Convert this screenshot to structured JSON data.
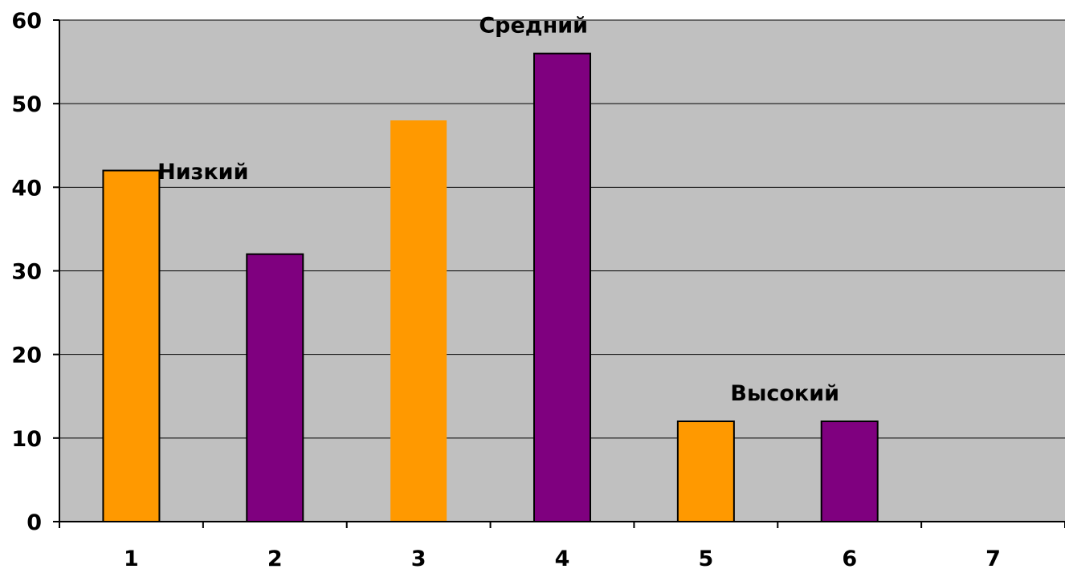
{
  "chart_data": {
    "type": "bar",
    "categories": [
      "1",
      "2",
      "3",
      "4",
      "5",
      "6",
      "7"
    ],
    "values": [
      42,
      32,
      48,
      56,
      12,
      12,
      null
    ],
    "bar_colors": [
      "#FF9900",
      "#7F007F",
      "#FF9900",
      "#7F007F",
      "#FF9900",
      "#7F007F",
      null
    ],
    "yticks": [
      "0",
      "10",
      "20",
      "30",
      "40",
      "50",
      "60"
    ],
    "ylim": [
      0,
      60
    ],
    "grid": true,
    "plot_background": "#C0C0C0",
    "annotations": [
      {
        "text": "Низкий",
        "x": 1.5,
        "y": 41
      },
      {
        "text": "Средний",
        "x": 3.8,
        "y": 58.5
      },
      {
        "text": "Высокий",
        "x": 5.55,
        "y": 14.5
      }
    ],
    "title": "",
    "xlabel": "",
    "ylabel": ""
  }
}
